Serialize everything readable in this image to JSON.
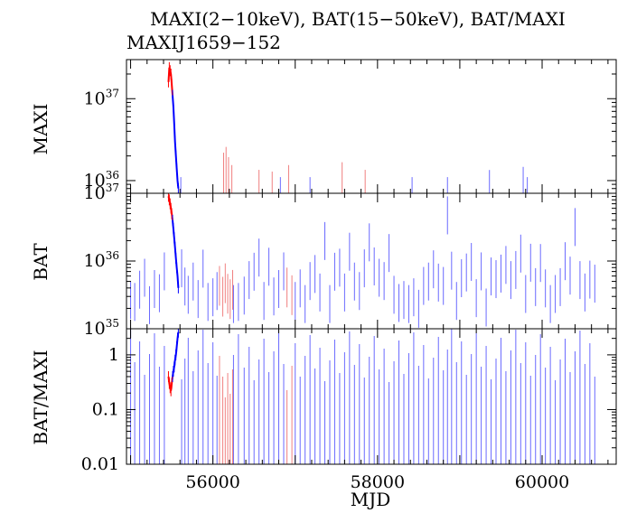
{
  "title": "MAXI(2−10keV), BAT(15−50keV), BAT/MAXI",
  "subtitle": "MAXIJ1659−152",
  "xlabel": "MJD",
  "colors": {
    "maxi_red": "#ff0000",
    "bat_blue": "#0000ff",
    "faint_red": "#f08080",
    "faint_blue": "#6a6aff"
  },
  "chart_data": {
    "type": "line",
    "x_axis": {
      "label": "MJD",
      "range": [
        54950,
        60900
      ],
      "ticks": [
        56000,
        58000,
        60000
      ]
    },
    "panels": [
      {
        "name": "maxi",
        "ylabel": "MAXI",
        "yscale": "log",
        "ylim": [
          7e+35,
          3e+37
        ],
        "ticks": [
          {
            "value": 1e+36,
            "base": "10",
            "exp": "36"
          },
          {
            "value": 1e+37,
            "base": "10",
            "exp": "37"
          }
        ],
        "outburst": {
          "x": [
            55460,
            55470,
            55480,
            55490,
            55500,
            55510,
            55520,
            55530,
            55540,
            55550,
            55560,
            55570,
            55580
          ],
          "y": [
            1.6e+37,
            2.4e+37,
            2.2e+37,
            2e+37,
            1.5e+37,
            1.1e+37,
            8e+36,
            5e+36,
            3e+36,
            2e+36,
            1.4e+36,
            1e+36,
            8e+35
          ]
        },
        "sporadic_red": [
          [
            56130,
            1.7e+36
          ],
          [
            56160,
            2e+36
          ],
          [
            56190,
            1.5e+36
          ],
          [
            56230,
            1.2e+36
          ],
          [
            56560,
            1.05e+36
          ],
          [
            56720,
            1e+36
          ],
          [
            56920,
            1.2e+36
          ],
          [
            57570,
            1.3e+36
          ],
          [
            57850,
            1.05e+36
          ]
        ],
        "sporadic_blue": [
          [
            55610,
            9e+35
          ],
          [
            56820,
            9e+35
          ],
          [
            57180,
            9e+35
          ],
          [
            58420,
            9e+35
          ],
          [
            58850,
            9e+35
          ],
          [
            59360,
            1.1e+36
          ],
          [
            59770,
            1.2e+36
          ],
          [
            59820,
            9e+35
          ]
        ]
      },
      {
        "name": "bat",
        "ylabel": "BAT",
        "yscale": "log",
        "ylim": [
          1e+35,
          1e+37
        ],
        "ticks": [
          {
            "value": 1e+35,
            "base": "10",
            "exp": "35"
          },
          {
            "value": 1e+36,
            "base": "10",
            "exp": "36"
          },
          {
            "value": 1e+37,
            "base": "10",
            "exp": "37"
          }
        ],
        "outburst": {
          "x": [
            55460,
            55470,
            55480,
            55490,
            55500,
            55510,
            55520,
            55530,
            55540,
            55550,
            55560,
            55570,
            55580
          ],
          "y": [
            9e+36,
            8e+36,
            7e+36,
            6e+36,
            5e+36,
            4e+36,
            3e+36,
            2.2e+36,
            1.6e+36,
            1.1e+36,
            8e+35,
            6e+35,
            4e+35
          ]
        },
        "scatter_blue": [
          [
            55000,
            3.1e+35
          ],
          [
            55050,
            2.9e+35
          ],
          [
            55110,
            4.4e+35
          ],
          [
            55170,
            6.6e+35
          ],
          [
            55230,
            2.6e+35
          ],
          [
            55290,
            4.5e+35
          ],
          [
            55350,
            3.9e+35
          ],
          [
            55410,
            8.2e+35
          ],
          [
            55620,
            9.1e+35
          ],
          [
            55660,
            4.9e+35
          ],
          [
            55700,
            3.7e+35
          ],
          [
            55760,
            5.8e+35
          ],
          [
            55820,
            3.2e+35
          ],
          [
            55880,
            9e+35
          ],
          [
            55940,
            2.9e+35
          ],
          [
            56000,
            3.4e+35
          ],
          [
            56050,
            4.2e+35
          ],
          [
            56250,
            2.7e+35
          ],
          [
            56310,
            2.9e+35
          ],
          [
            56380,
            3.6e+35
          ],
          [
            56440,
            6.1e+35
          ],
          [
            56500,
            8.1e+35
          ],
          [
            56560,
            1.31e+36
          ],
          [
            56620,
            3e+35
          ],
          [
            56680,
            9.6e+35
          ],
          [
            56740,
            3.5e+35
          ],
          [
            56800,
            4.5e+35
          ],
          [
            56860,
            8.2e+35
          ],
          [
            57000,
            3e+35
          ],
          [
            57060,
            4.6e+35
          ],
          [
            57120,
            2.7e+35
          ],
          [
            57180,
            5.9e+35
          ],
          [
            57240,
            7.5e+35
          ],
          [
            57300,
            4e+35
          ],
          [
            57360,
            2.3e+36
          ],
          [
            57420,
            2.7e+35
          ],
          [
            57480,
            8.1e+35
          ],
          [
            57540,
            9.3e+35
          ],
          [
            57600,
            4e+35
          ],
          [
            57660,
            1.6e+36
          ],
          [
            57720,
            5.8e+35
          ],
          [
            57780,
            4.2e+35
          ],
          [
            57840,
            9.1e+35
          ],
          [
            57900,
            2.2e+36
          ],
          [
            57960,
            9.7e+35
          ],
          [
            58020,
            6.6e+35
          ],
          [
            58080,
            5.9e+35
          ],
          [
            58140,
            1.53e+36
          ],
          [
            58200,
            3.7e+35
          ],
          [
            58260,
            2.8e+35
          ],
          [
            58320,
            3.1e+35
          ],
          [
            58380,
            2.7e+35
          ],
          [
            58440,
            3.4e+35
          ],
          [
            58500,
            2.3e+35
          ],
          [
            58560,
            5e+35
          ],
          [
            58620,
            5.8e+35
          ],
          [
            58680,
            8.8e+35
          ],
          [
            58740,
            5.6e+35
          ],
          [
            58800,
            5e+35
          ],
          [
            58850,
            5.5e+36
          ],
          [
            58900,
            8.4e+35
          ],
          [
            58960,
            3e+35
          ],
          [
            59020,
            6.5e+35
          ],
          [
            59080,
            7.9e+35
          ],
          [
            59140,
            1.13e+36
          ],
          [
            59200,
            3.3e+35
          ],
          [
            59260,
            8.2e+35
          ],
          [
            59320,
            2.4e+35
          ],
          [
            59380,
            6.9e+35
          ],
          [
            59440,
            6.3e+35
          ],
          [
            59500,
            7.6e+35
          ],
          [
            59560,
            1.02e+36
          ],
          [
            59620,
            6.1e+35
          ],
          [
            59680,
            8.6e+35
          ],
          [
            59740,
            1.5e+36
          ],
          [
            59800,
            3.8e+35
          ],
          [
            59860,
            1.1e+36
          ],
          [
            59920,
            4.8e+35
          ],
          [
            59980,
            1.09e+36
          ],
          [
            60040,
            4.6e+35
          ],
          [
            60100,
            2.7e+35
          ],
          [
            60160,
            3.8e+35
          ],
          [
            60220,
            4.8e+35
          ],
          [
            60280,
            1.16e+36
          ],
          [
            60340,
            7.1e+35
          ],
          [
            60400,
            3.7e+36
          ],
          [
            60460,
            6.1e+35
          ],
          [
            60520,
            4e+35
          ],
          [
            60580,
            6.2e+35
          ],
          [
            60640,
            5.4e+35
          ]
        ],
        "scatter_red": [
          [
            56080,
            5.5e+35
          ],
          [
            56120,
            3.8e+35
          ],
          [
            56150,
            6e+35
          ],
          [
            56180,
            4.2e+35
          ],
          [
            56210,
            3.5e+35
          ],
          [
            56240,
            4.8e+35
          ],
          [
            56900,
            5.2e+35
          ],
          [
            56960,
            4e+35
          ]
        ]
      },
      {
        "name": "ratio",
        "ylabel": "BAT/MAXI",
        "yscale": "log",
        "ylim": [
          0.01,
          3
        ],
        "ticks": [
          {
            "value": 0.01,
            "label": "0.01"
          },
          {
            "value": 0.1,
            "label": "0.1"
          },
          {
            "value": 1,
            "label": "1"
          }
        ],
        "outburst": {
          "x": [
            55460,
            55470,
            55480,
            55490,
            55500,
            55510,
            55520,
            55530,
            55540,
            55550,
            55560,
            55570,
            55580
          ],
          "y": [
            0.4,
            0.3,
            0.25,
            0.22,
            0.3,
            0.4,
            0.5,
            0.6,
            0.8,
            1.0,
            1.4,
            2.0,
            2.6
          ]
        },
        "scatter_blue_x": [
          55000,
          55050,
          55110,
          55170,
          55230,
          55290,
          55350,
          55410,
          55620,
          55660,
          55700,
          55760,
          55820,
          55880,
          55940,
          56000,
          56050,
          56250,
          56310,
          56380,
          56440,
          56500,
          56560,
          56620,
          56680,
          56740,
          56800,
          56860,
          57000,
          57060,
          57120,
          57180,
          57240,
          57300,
          57360,
          57420,
          57480,
          57540,
          57600,
          57660,
          57720,
          57780,
          57840,
          57900,
          57960,
          58020,
          58080,
          58140,
          58200,
          58260,
          58320,
          58380,
          58440,
          58500,
          58560,
          58620,
          58680,
          58740,
          58800,
          58850,
          58900,
          58960,
          59020,
          59080,
          59140,
          59200,
          59260,
          59320,
          59380,
          59440,
          59500,
          59560,
          59620,
          59680,
          59740,
          59800,
          59860,
          59920,
          59980,
          60040,
          60100,
          60160,
          60220,
          60280,
          60340,
          60400,
          60460,
          60520,
          60580,
          60640
        ],
        "scatter_red_x": [
          56080,
          56120,
          56150,
          56180,
          56210,
          56240,
          56900,
          56960
        ]
      }
    ]
  }
}
